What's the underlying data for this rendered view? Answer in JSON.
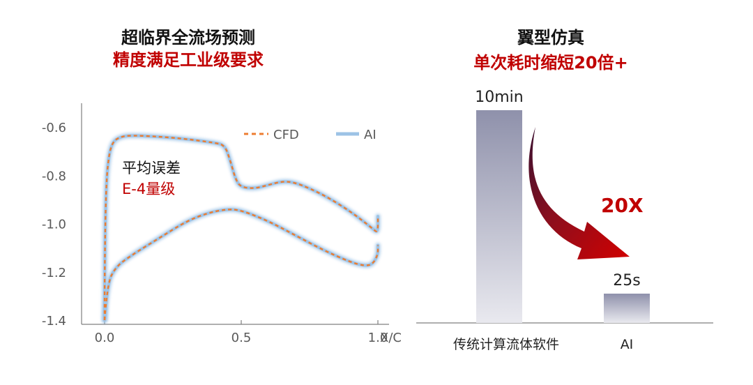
{
  "left_panel": {
    "title": "超临界全流场预测",
    "subtitle": "精度满足工业级要求",
    "annotation_line1": "平均误差",
    "annotation_line2": "E-4量级"
  },
  "right_panel": {
    "title": "翼型仿真",
    "subtitle": "单次耗时缩短20倍+",
    "speedup_label": "20X"
  },
  "colors": {
    "title_red": "#c00000",
    "cfd_line": "#ed7d31",
    "ai_line": "#9dc3e6",
    "bar": "#9a9cb3",
    "arrow": "#c00000"
  },
  "chart_data": [
    {
      "type": "line",
      "xlabel": "X/C",
      "ylabel": "",
      "xlim": [
        -0.05,
        1.02
      ],
      "ylim": [
        -1.4,
        -0.5
      ],
      "yticks": [
        "-0.6",
        "-0.8",
        "-1.0",
        "-1.2",
        "-1.4"
      ],
      "ytick_values": [
        -0.6,
        -0.8,
        -1.0,
        -1.2,
        -1.4
      ],
      "xticks": [
        "0.0",
        "0.5",
        "1.0"
      ],
      "xtick_values": [
        0.0,
        0.5,
        1.0
      ],
      "legend_position": "top-right",
      "series": [
        {
          "name": "CFD",
          "style": "dashed",
          "upper": [
            [
              0.0,
              -1.4
            ],
            [
              0.0,
              -1.2
            ],
            [
              0.005,
              -0.85
            ],
            [
              0.015,
              -0.72
            ],
            [
              0.03,
              -0.66
            ],
            [
              0.06,
              -0.64
            ],
            [
              0.1,
              -0.635
            ],
            [
              0.2,
              -0.64
            ],
            [
              0.3,
              -0.65
            ],
            [
              0.4,
              -0.665
            ],
            [
              0.44,
              -0.675
            ],
            [
              0.46,
              -0.74
            ],
            [
              0.48,
              -0.82
            ],
            [
              0.5,
              -0.85
            ],
            [
              0.55,
              -0.855
            ],
            [
              0.6,
              -0.84
            ],
            [
              0.65,
              -0.825
            ],
            [
              0.7,
              -0.83
            ],
            [
              0.8,
              -0.88
            ],
            [
              0.9,
              -0.95
            ],
            [
              0.98,
              -1.02
            ],
            [
              1.0,
              -1.04
            ],
            [
              1.0,
              -0.97
            ]
          ],
          "lower": [
            [
              0.0,
              -1.4
            ],
            [
              0.01,
              -1.25
            ],
            [
              0.04,
              -1.18
            ],
            [
              0.1,
              -1.13
            ],
            [
              0.2,
              -1.06
            ],
            [
              0.3,
              -0.99
            ],
            [
              0.38,
              -0.955
            ],
            [
              0.45,
              -0.94
            ],
            [
              0.5,
              -0.945
            ],
            [
              0.6,
              -0.99
            ],
            [
              0.7,
              -1.05
            ],
            [
              0.8,
              -1.11
            ],
            [
              0.9,
              -1.16
            ],
            [
              0.95,
              -1.175
            ],
            [
              0.98,
              -1.17
            ],
            [
              1.0,
              -1.13
            ],
            [
              1.0,
              -1.09
            ]
          ]
        },
        {
          "name": "AI",
          "style": "solid",
          "upper": [
            [
              0.0,
              -1.4
            ],
            [
              0.0,
              -1.2
            ],
            [
              0.005,
              -0.85
            ],
            [
              0.015,
              -0.72
            ],
            [
              0.03,
              -0.66
            ],
            [
              0.06,
              -0.64
            ],
            [
              0.1,
              -0.635
            ],
            [
              0.2,
              -0.64
            ],
            [
              0.3,
              -0.65
            ],
            [
              0.4,
              -0.665
            ],
            [
              0.44,
              -0.675
            ],
            [
              0.46,
              -0.74
            ],
            [
              0.48,
              -0.82
            ],
            [
              0.5,
              -0.85
            ],
            [
              0.55,
              -0.855
            ],
            [
              0.6,
              -0.84
            ],
            [
              0.65,
              -0.825
            ],
            [
              0.7,
              -0.83
            ],
            [
              0.8,
              -0.88
            ],
            [
              0.9,
              -0.95
            ],
            [
              0.98,
              -1.02
            ],
            [
              1.0,
              -1.04
            ],
            [
              1.0,
              -0.97
            ]
          ],
          "lower": [
            [
              0.0,
              -1.4
            ],
            [
              0.01,
              -1.25
            ],
            [
              0.04,
              -1.18
            ],
            [
              0.1,
              -1.13
            ],
            [
              0.2,
              -1.06
            ],
            [
              0.3,
              -0.99
            ],
            [
              0.38,
              -0.955
            ],
            [
              0.45,
              -0.94
            ],
            [
              0.5,
              -0.945
            ],
            [
              0.6,
              -0.99
            ],
            [
              0.7,
              -1.05
            ],
            [
              0.8,
              -1.11
            ],
            [
              0.9,
              -1.16
            ],
            [
              0.95,
              -1.175
            ],
            [
              0.98,
              -1.17
            ],
            [
              1.0,
              -1.13
            ],
            [
              1.0,
              -1.09
            ]
          ]
        }
      ]
    },
    {
      "type": "bar",
      "categories": [
        "传统计算流体软件",
        "AI"
      ],
      "value_labels": [
        "10min",
        "25s"
      ],
      "values_seconds": [
        600,
        25
      ],
      "ylim": [
        0,
        600
      ]
    }
  ]
}
